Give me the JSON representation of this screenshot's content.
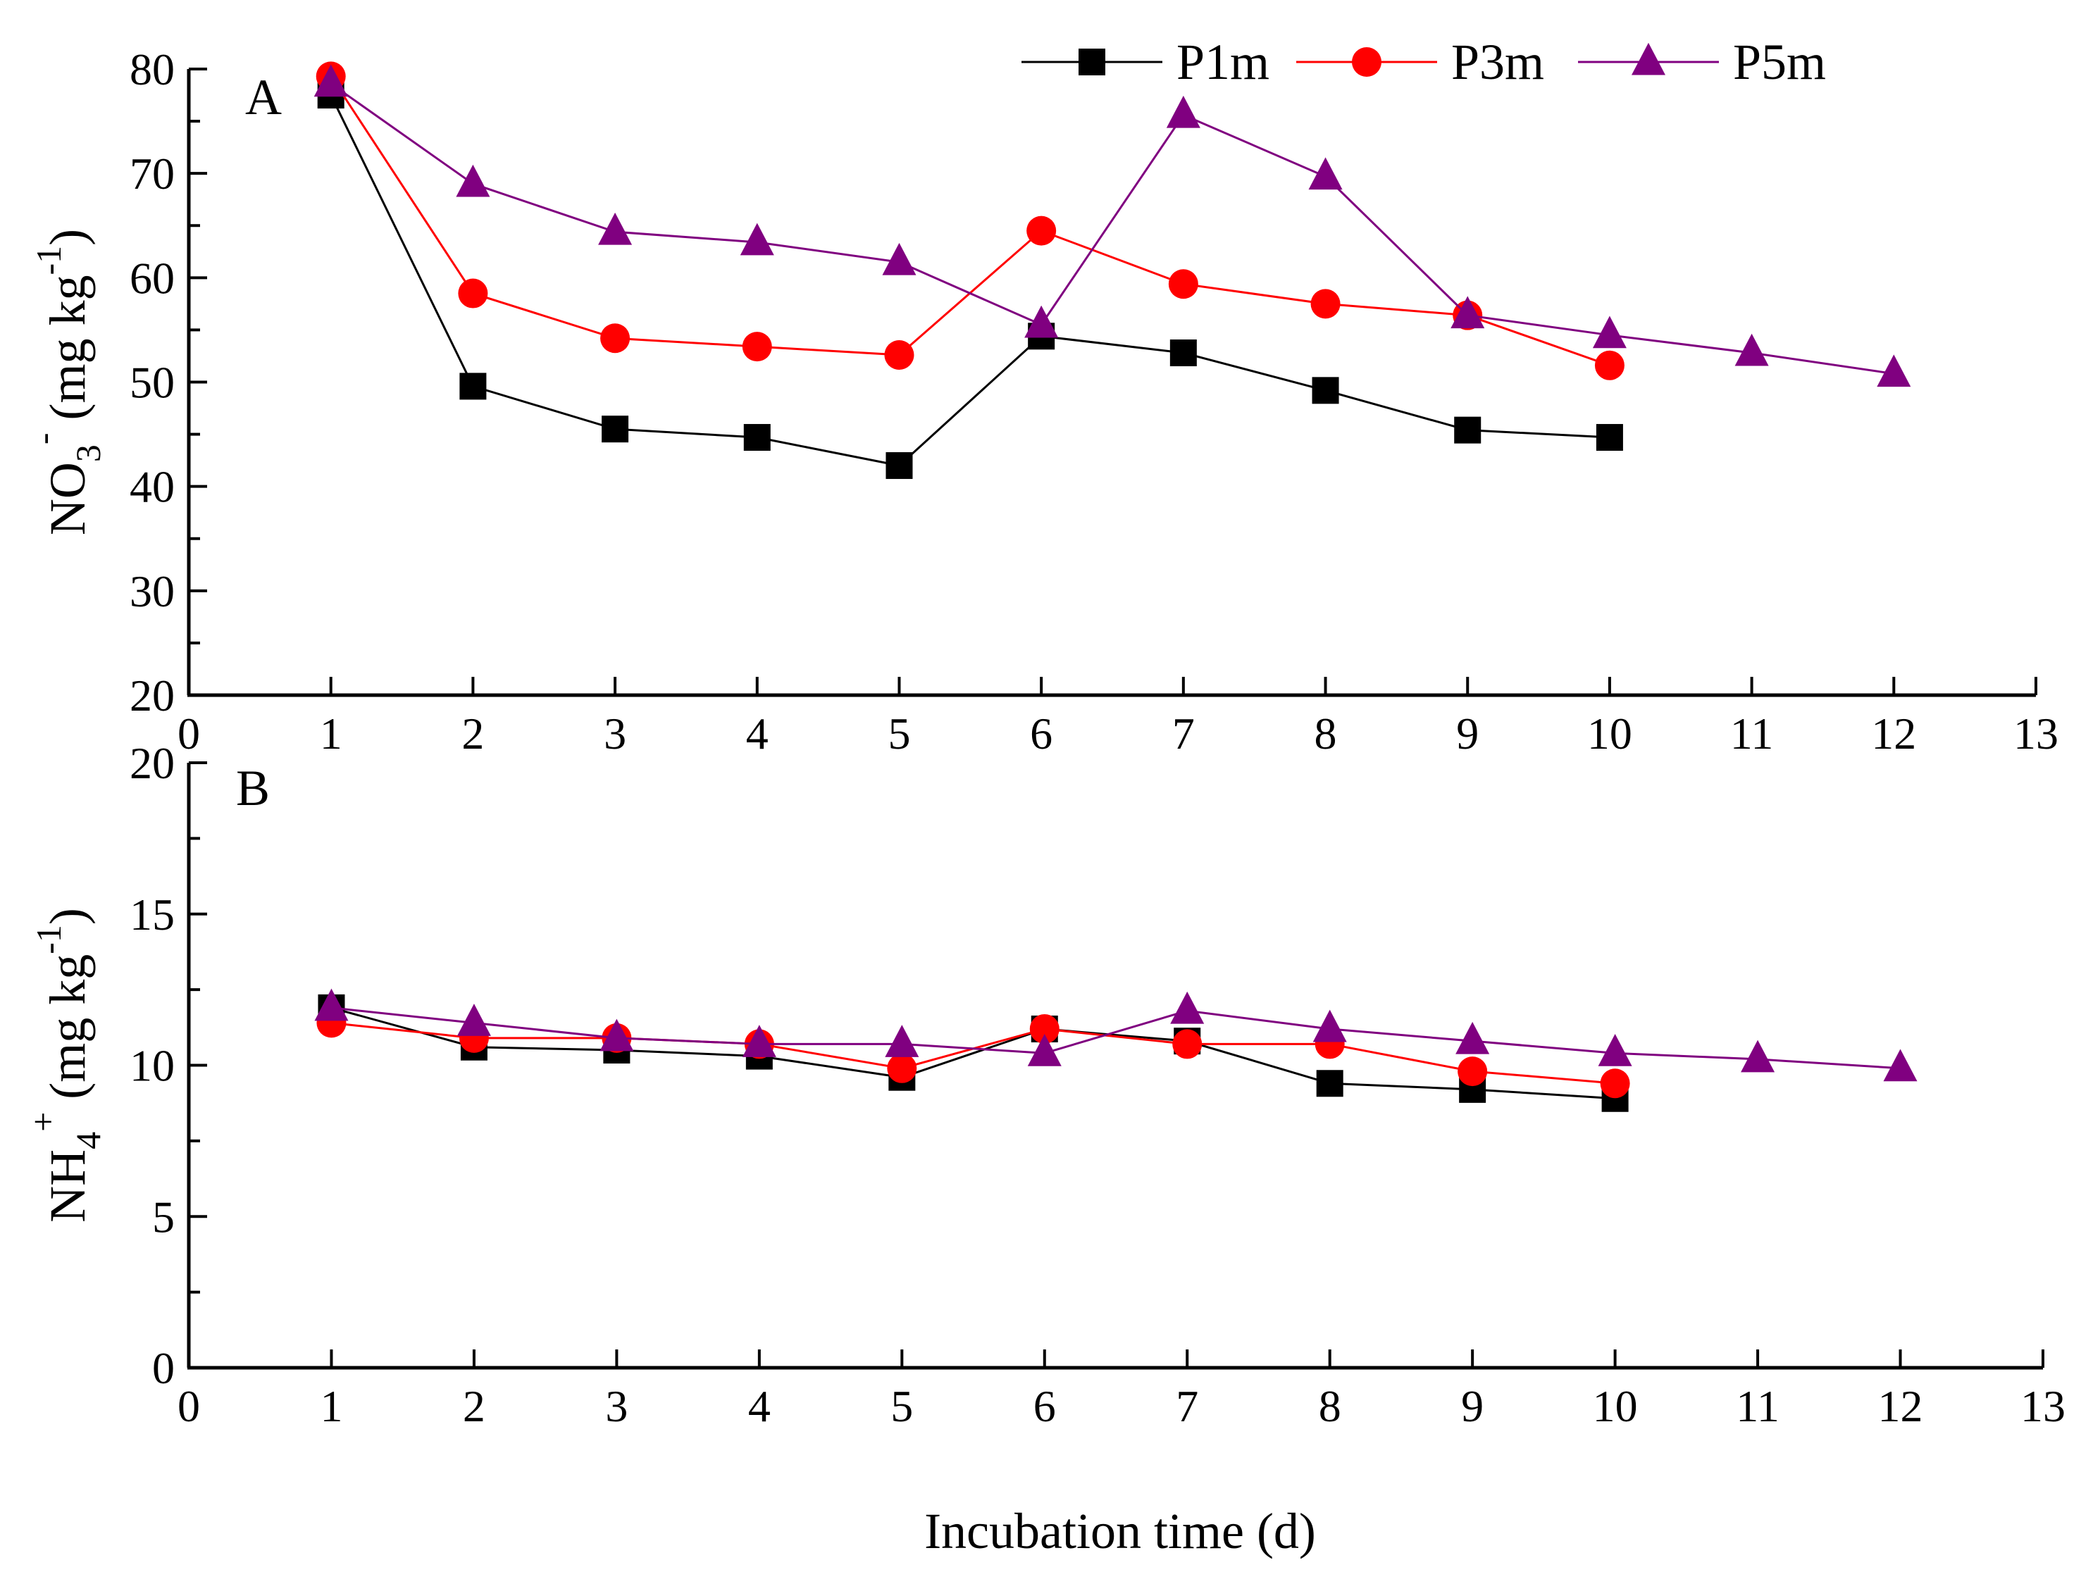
{
  "colors": {
    "P1m": "#000000",
    "P3m": "#ff0000",
    "P5m": "#800080"
  },
  "legend": [
    {
      "name": "P1m",
      "marker": "square"
    },
    {
      "name": "P3m",
      "marker": "circle"
    },
    {
      "name": "P5m",
      "marker": "triangle"
    }
  ],
  "chart_data": [
    {
      "type": "line",
      "panel": "A",
      "xlabel": "",
      "ylabel": "NO3- (mg kg-1)",
      "ylabel_parts": {
        "base": "NO",
        "sub": "3",
        "sup1": "-",
        "unit_open": " (mg kg",
        "sup2": "-1",
        "unit_close": ")"
      },
      "xlim": [
        0,
        13
      ],
      "ylim": [
        20,
        80
      ],
      "xticks": [
        0,
        1,
        2,
        3,
        4,
        5,
        6,
        7,
        8,
        9,
        10,
        11,
        12,
        13
      ],
      "yticks": [
        20,
        30,
        40,
        50,
        60,
        70,
        80
      ],
      "series": [
        {
          "name": "P1m",
          "x": [
            1,
            2,
            3,
            4,
            5,
            6,
            7,
            8,
            9,
            10
          ],
          "values": [
            77.5,
            49.6,
            45.5,
            44.7,
            42.0,
            54.4,
            52.8,
            49.2,
            45.4,
            44.7
          ]
        },
        {
          "name": "P3m",
          "x": [
            1,
            2,
            3,
            4,
            5,
            6,
            7,
            8,
            9,
            10
          ],
          "values": [
            79.3,
            58.5,
            54.2,
            53.4,
            52.6,
            64.5,
            59.4,
            57.5,
            56.4,
            51.6
          ]
        },
        {
          "name": "P5m",
          "x": [
            1,
            2,
            3,
            4,
            5,
            6,
            7,
            8,
            9,
            10,
            11,
            12
          ],
          "values": [
            78.6,
            69.0,
            64.4,
            63.4,
            61.5,
            55.5,
            75.6,
            69.7,
            56.4,
            54.5,
            52.8,
            50.8
          ]
        }
      ]
    },
    {
      "type": "line",
      "panel": "B",
      "xlabel": "Incubation time (d)",
      "ylabel": "NH4+ (mg kg-1)",
      "ylabel_parts": {
        "base": "NH",
        "sub": "4",
        "sup1": "+",
        "unit_open": " (mg kg",
        "sup2": "-1",
        "unit_close": ")"
      },
      "xlim": [
        0,
        13
      ],
      "ylim": [
        0,
        20
      ],
      "xticks": [
        0,
        1,
        2,
        3,
        4,
        5,
        6,
        7,
        8,
        9,
        10,
        11,
        12,
        13
      ],
      "yticks": [
        0,
        5,
        10,
        15,
        20
      ],
      "series": [
        {
          "name": "P1m",
          "x": [
            1,
            2,
            3,
            4,
            5,
            6,
            7,
            8,
            9,
            10
          ],
          "values": [
            11.9,
            10.6,
            10.5,
            10.3,
            9.6,
            11.2,
            10.8,
            9.4,
            9.2,
            8.9
          ]
        },
        {
          "name": "P3m",
          "x": [
            1,
            2,
            3,
            4,
            5,
            6,
            7,
            8,
            9,
            10
          ],
          "values": [
            11.4,
            10.9,
            10.9,
            10.7,
            9.9,
            11.2,
            10.7,
            10.7,
            9.8,
            9.4
          ]
        },
        {
          "name": "P5m",
          "x": [
            1,
            2,
            3,
            4,
            5,
            6,
            7,
            8,
            9,
            10,
            11,
            12
          ],
          "values": [
            11.9,
            11.4,
            10.9,
            10.7,
            10.7,
            10.4,
            11.8,
            11.2,
            10.8,
            10.4,
            10.2,
            9.9
          ]
        }
      ]
    }
  ]
}
